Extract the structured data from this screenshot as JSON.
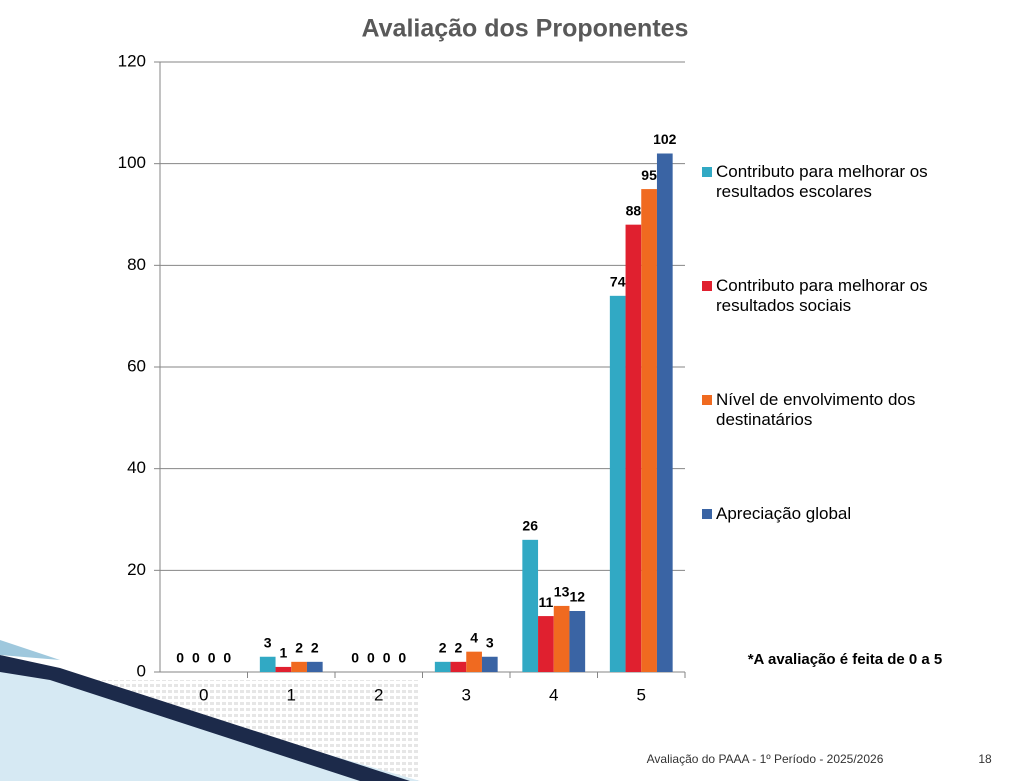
{
  "chart_data": {
    "type": "bar",
    "title": "Avaliação dos Proponentes",
    "categories": [
      "0",
      "1",
      "2",
      "3",
      "4",
      "5"
    ],
    "series": [
      {
        "name": "Contributo para melhorar os resultados escolares",
        "color": "#31a9c4",
        "values": [
          0,
          3,
          0,
          2,
          26,
          74
        ]
      },
      {
        "name": "Contributo para melhorar os resultados sociais",
        "color": "#e0202f",
        "values": [
          0,
          1,
          0,
          2,
          11,
          88
        ]
      },
      {
        "name": "Nível de envolvimento dos destinatários",
        "color": "#f06a20",
        "values": [
          0,
          2,
          0,
          4,
          13,
          95
        ]
      },
      {
        "name": "Apreciação global",
        "color": "#3a64a4",
        "values": [
          0,
          2,
          0,
          3,
          12,
          102
        ]
      }
    ],
    "ylim": [
      0,
      120
    ],
    "yticks": [
      0,
      20,
      40,
      60,
      80,
      100,
      120
    ],
    "grid": true,
    "legend": "right",
    "annotation": "*A avaliação é feita de 0 a 5"
  },
  "footer": {
    "text": "Avaliação do PAAA  - 1º Período - 2025/2026",
    "page": "18"
  }
}
